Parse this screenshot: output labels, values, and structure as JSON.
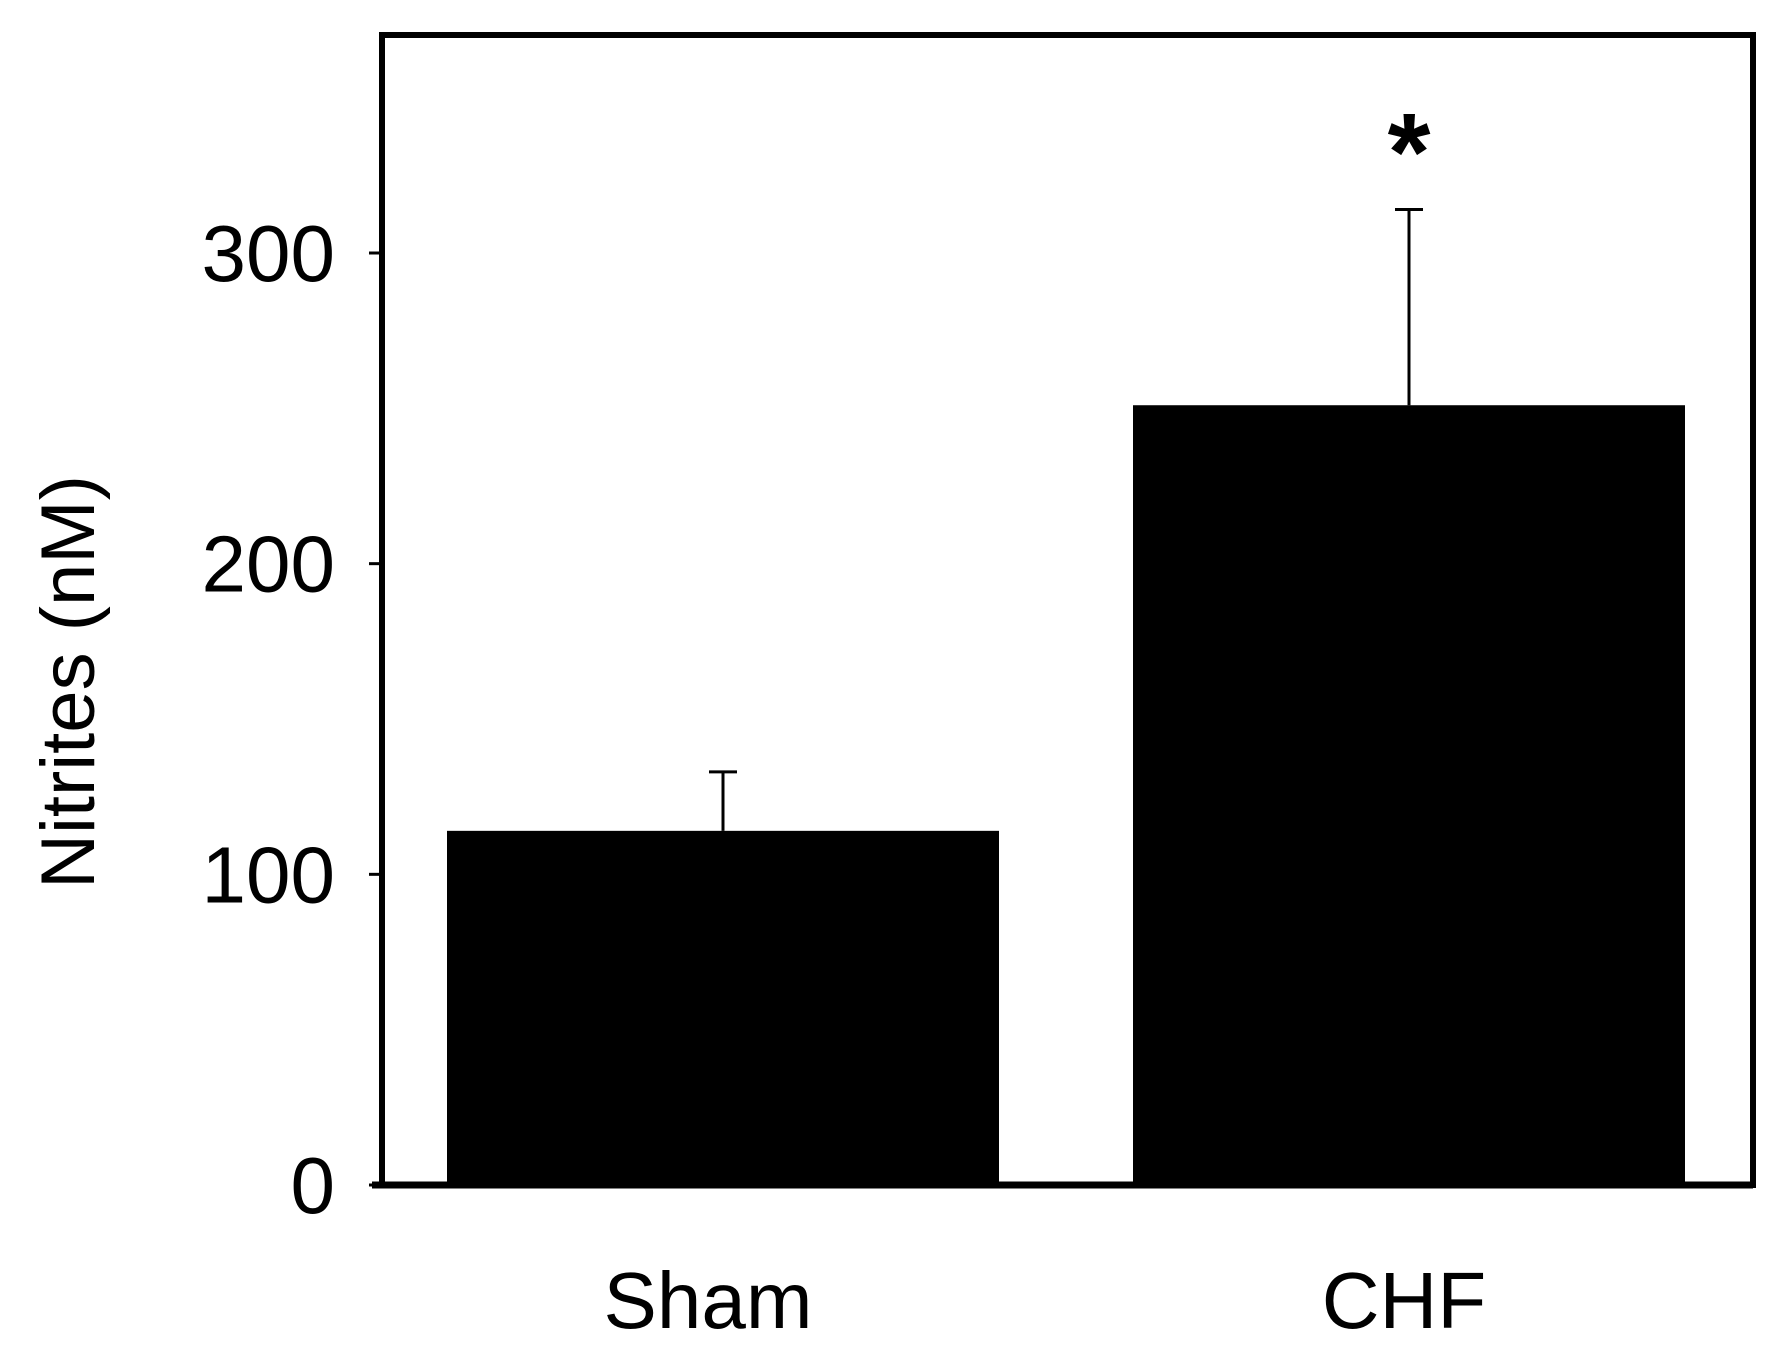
{
  "chart_data": {
    "type": "bar",
    "title": "",
    "xlabel": "",
    "ylabel": "Nitrites (nM)",
    "categories": [
      "Sham",
      "CHF"
    ],
    "values": [
      114,
      251
    ],
    "error_upper": [
      133,
      314
    ],
    "yticks": [
      0,
      100,
      200,
      300
    ],
    "ylim": [
      0,
      375
    ],
    "grid": false,
    "legend": "none",
    "annotations": [
      {
        "category": "CHF",
        "text": "*"
      }
    ],
    "bar_color": "#000000",
    "frame_color": "#000000"
  }
}
